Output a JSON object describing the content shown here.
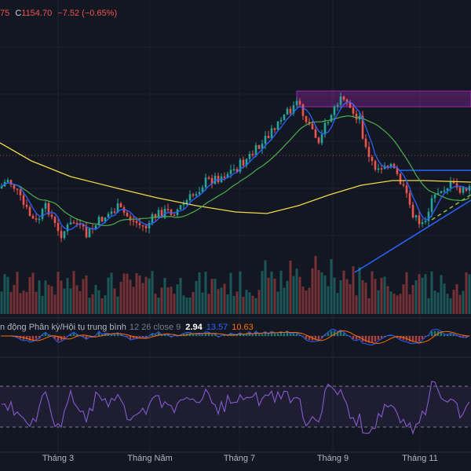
{
  "header": {
    "partial_value": "75",
    "close_label": "C",
    "close_value": "1154.70",
    "change": "−7.52 (−0.65%)"
  },
  "macd_legend": {
    "indicator": "n động Phân kỳ/Hội tụ trung bình",
    "params": "12 26 close 9",
    "histogram": "2.94",
    "macd": "13.57",
    "signal": "10.63"
  },
  "x_axis": {
    "labels": [
      "Tháng 3",
      "Tháng Năm",
      "Tháng 7",
      "Tháng 9",
      "Tháng 11"
    ]
  },
  "colors": {
    "background": "#131722",
    "up": "#26a69a",
    "down": "#ef5350",
    "ma_fast": "#2962ff",
    "ma_mid": "#4caf50",
    "ma_slow": "#f5d547",
    "macd_line": "#2962ff",
    "signal_line": "#ff6d00",
    "rsi_line": "#7e57c2",
    "zone": "#9c27b0",
    "trendline": "#2962ff",
    "dashed_trendline": "#8bc34a"
  },
  "chart_data": {
    "type": "candlestick",
    "title": "",
    "x_labels": [
      "Tháng 3",
      "Tháng Năm",
      "Tháng 7",
      "Tháng 9",
      "Tháng 11"
    ],
    "last_close": 1154.7,
    "last_change": -7.52,
    "last_change_pct": -0.65,
    "price_path": [
      {
        "segment": "early",
        "trend": "down-then-range"
      },
      {
        "segment": "Tháng Năm - Tháng 7",
        "trend": "up"
      },
      {
        "segment": "Tháng 7 - Tháng 9",
        "trend": "strong-up-to-peak"
      },
      {
        "segment": "Tháng 9 - Tháng 11",
        "trend": "down"
      },
      {
        "segment": "Tháng 11 - end",
        "trend": "recovery"
      }
    ],
    "overlays": [
      "moving-average-fast",
      "moving-average-mid",
      "moving-average-slow",
      "resistance-zone",
      "horizontal-resistance",
      "rising-trendline",
      "dashed-trendline",
      "dotted-level"
    ],
    "panes": [
      "price",
      "volume",
      "macd",
      "rsi"
    ],
    "grid": true
  }
}
